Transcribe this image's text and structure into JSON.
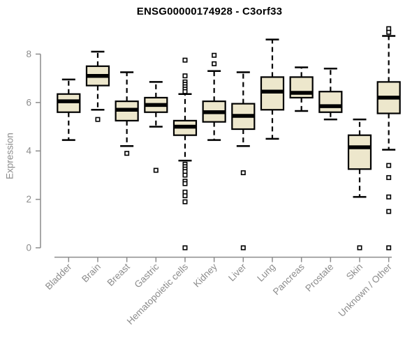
{
  "header": {
    "title": "ENSG00000174928 - C3orf33"
  },
  "chart_data": {
    "type": "boxplot",
    "title": "ENSG00000174928 - C3orf33",
    "xlabel": "",
    "ylabel": "Expression",
    "ylim": [
      0,
      9.2
    ],
    "yticks": [
      0,
      2,
      4,
      6,
      8
    ],
    "grid": false,
    "legend": false,
    "categories": [
      "Bladder",
      "Brain",
      "Breast",
      "Gastric",
      "Hematopoietic cells",
      "Kidney",
      "Liver",
      "Lung",
      "Pancreas",
      "Prostate",
      "Skin",
      "Unknown / Other"
    ],
    "series": [
      {
        "category": "Bladder",
        "whisker_low": 4.45,
        "q1": 5.6,
        "median": 6.05,
        "q3": 6.35,
        "whisker_high": 6.95,
        "outliers": []
      },
      {
        "category": "Brain",
        "whisker_low": 5.7,
        "q1": 6.7,
        "median": 7.1,
        "q3": 7.5,
        "whisker_high": 8.1,
        "outliers": [
          5.3
        ]
      },
      {
        "category": "Breast",
        "whisker_low": 4.2,
        "q1": 5.25,
        "median": 5.7,
        "q3": 6.05,
        "whisker_high": 7.25,
        "outliers": [
          3.9
        ]
      },
      {
        "category": "Gastric",
        "whisker_low": 5.0,
        "q1": 5.6,
        "median": 5.9,
        "q3": 6.2,
        "whisker_high": 6.85,
        "outliers": [
          3.2
        ]
      },
      {
        "category": "Hematopoietic cells",
        "whisker_low": 3.6,
        "q1": 4.65,
        "median": 5.0,
        "q3": 5.25,
        "whisker_high": 6.35,
        "outliers": [
          7.75,
          7.1,
          6.85,
          6.75,
          6.65,
          6.55,
          6.45,
          3.45,
          3.35,
          3.25,
          3.15,
          3.0,
          2.75,
          2.65,
          2.3,
          2.15,
          1.9,
          0
        ]
      },
      {
        "category": "Kidney",
        "whisker_low": 4.45,
        "q1": 5.2,
        "median": 5.6,
        "q3": 6.05,
        "whisker_high": 7.3,
        "outliers": [
          7.95,
          7.6
        ]
      },
      {
        "category": "Liver",
        "whisker_low": 4.2,
        "q1": 4.9,
        "median": 5.45,
        "q3": 5.95,
        "whisker_high": 7.25,
        "outliers": [
          3.1,
          0
        ]
      },
      {
        "category": "Lung",
        "whisker_low": 4.5,
        "q1": 5.7,
        "median": 6.45,
        "q3": 7.05,
        "whisker_high": 8.6,
        "outliers": []
      },
      {
        "category": "Pancreas",
        "whisker_low": 5.65,
        "q1": 6.2,
        "median": 6.4,
        "q3": 7.05,
        "whisker_high": 7.45,
        "outliers": []
      },
      {
        "category": "Prostate",
        "whisker_low": 5.3,
        "q1": 5.6,
        "median": 5.85,
        "q3": 6.45,
        "whisker_high": 7.4,
        "outliers": []
      },
      {
        "category": "Skin",
        "whisker_low": 2.1,
        "q1": 3.25,
        "median": 4.15,
        "q3": 4.65,
        "whisker_high": 5.3,
        "outliers": [
          0
        ]
      },
      {
        "category": "Unknown / Other",
        "whisker_low": 4.05,
        "q1": 5.55,
        "median": 6.2,
        "q3": 6.85,
        "whisker_high": 8.75,
        "outliers": [
          9.05,
          8.9,
          3.4,
          2.9,
          2.1,
          1.5,
          0
        ]
      }
    ]
  },
  "colors": {
    "box_fill": "#EDE7CC",
    "box_stroke": "#000000",
    "median": "#000000",
    "whisker": "#000000",
    "outlier_fill": "#FFFFFF",
    "axis": "#8C8C8C",
    "tick_label": "#8C8C8C",
    "title": "#000000",
    "background": "#FFFFFF"
  }
}
